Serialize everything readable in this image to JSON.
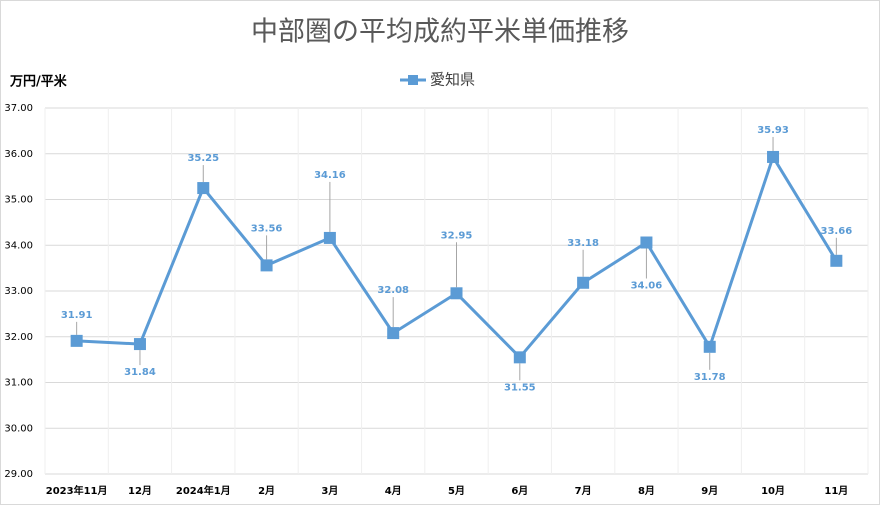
{
  "chart_data": {
    "type": "line",
    "title": "中部圏の平均成約平米単価推移",
    "y_axis_label": "万円/平米",
    "categories": [
      "2023年11月",
      "12月",
      "2024年1月",
      "2月",
      "3月",
      "4月",
      "5月",
      "6月",
      "7月",
      "8月",
      "9月",
      "10月",
      "11月"
    ],
    "series": [
      {
        "name": "愛知県",
        "color": "#5b9bd5",
        "values": [
          31.91,
          31.84,
          35.25,
          33.56,
          34.16,
          32.08,
          32.95,
          31.55,
          33.18,
          34.06,
          31.78,
          35.93,
          33.66
        ]
      }
    ],
    "ylim": [
      29,
      37
    ],
    "yticks": [
      {
        "value": 29,
        "label": "29.00"
      },
      {
        "value": 30,
        "label": "30.00"
      },
      {
        "value": 31,
        "label": "31.00"
      },
      {
        "value": 32,
        "label": "32.00"
      },
      {
        "value": 33,
        "label": "33.00"
      },
      {
        "value": 34,
        "label": "34.00"
      },
      {
        "value": 35,
        "label": "35.00"
      },
      {
        "value": 36,
        "label": "36.00"
      },
      {
        "value": 37,
        "label": "37.00"
      }
    ],
    "grid": true,
    "legend": "top"
  }
}
